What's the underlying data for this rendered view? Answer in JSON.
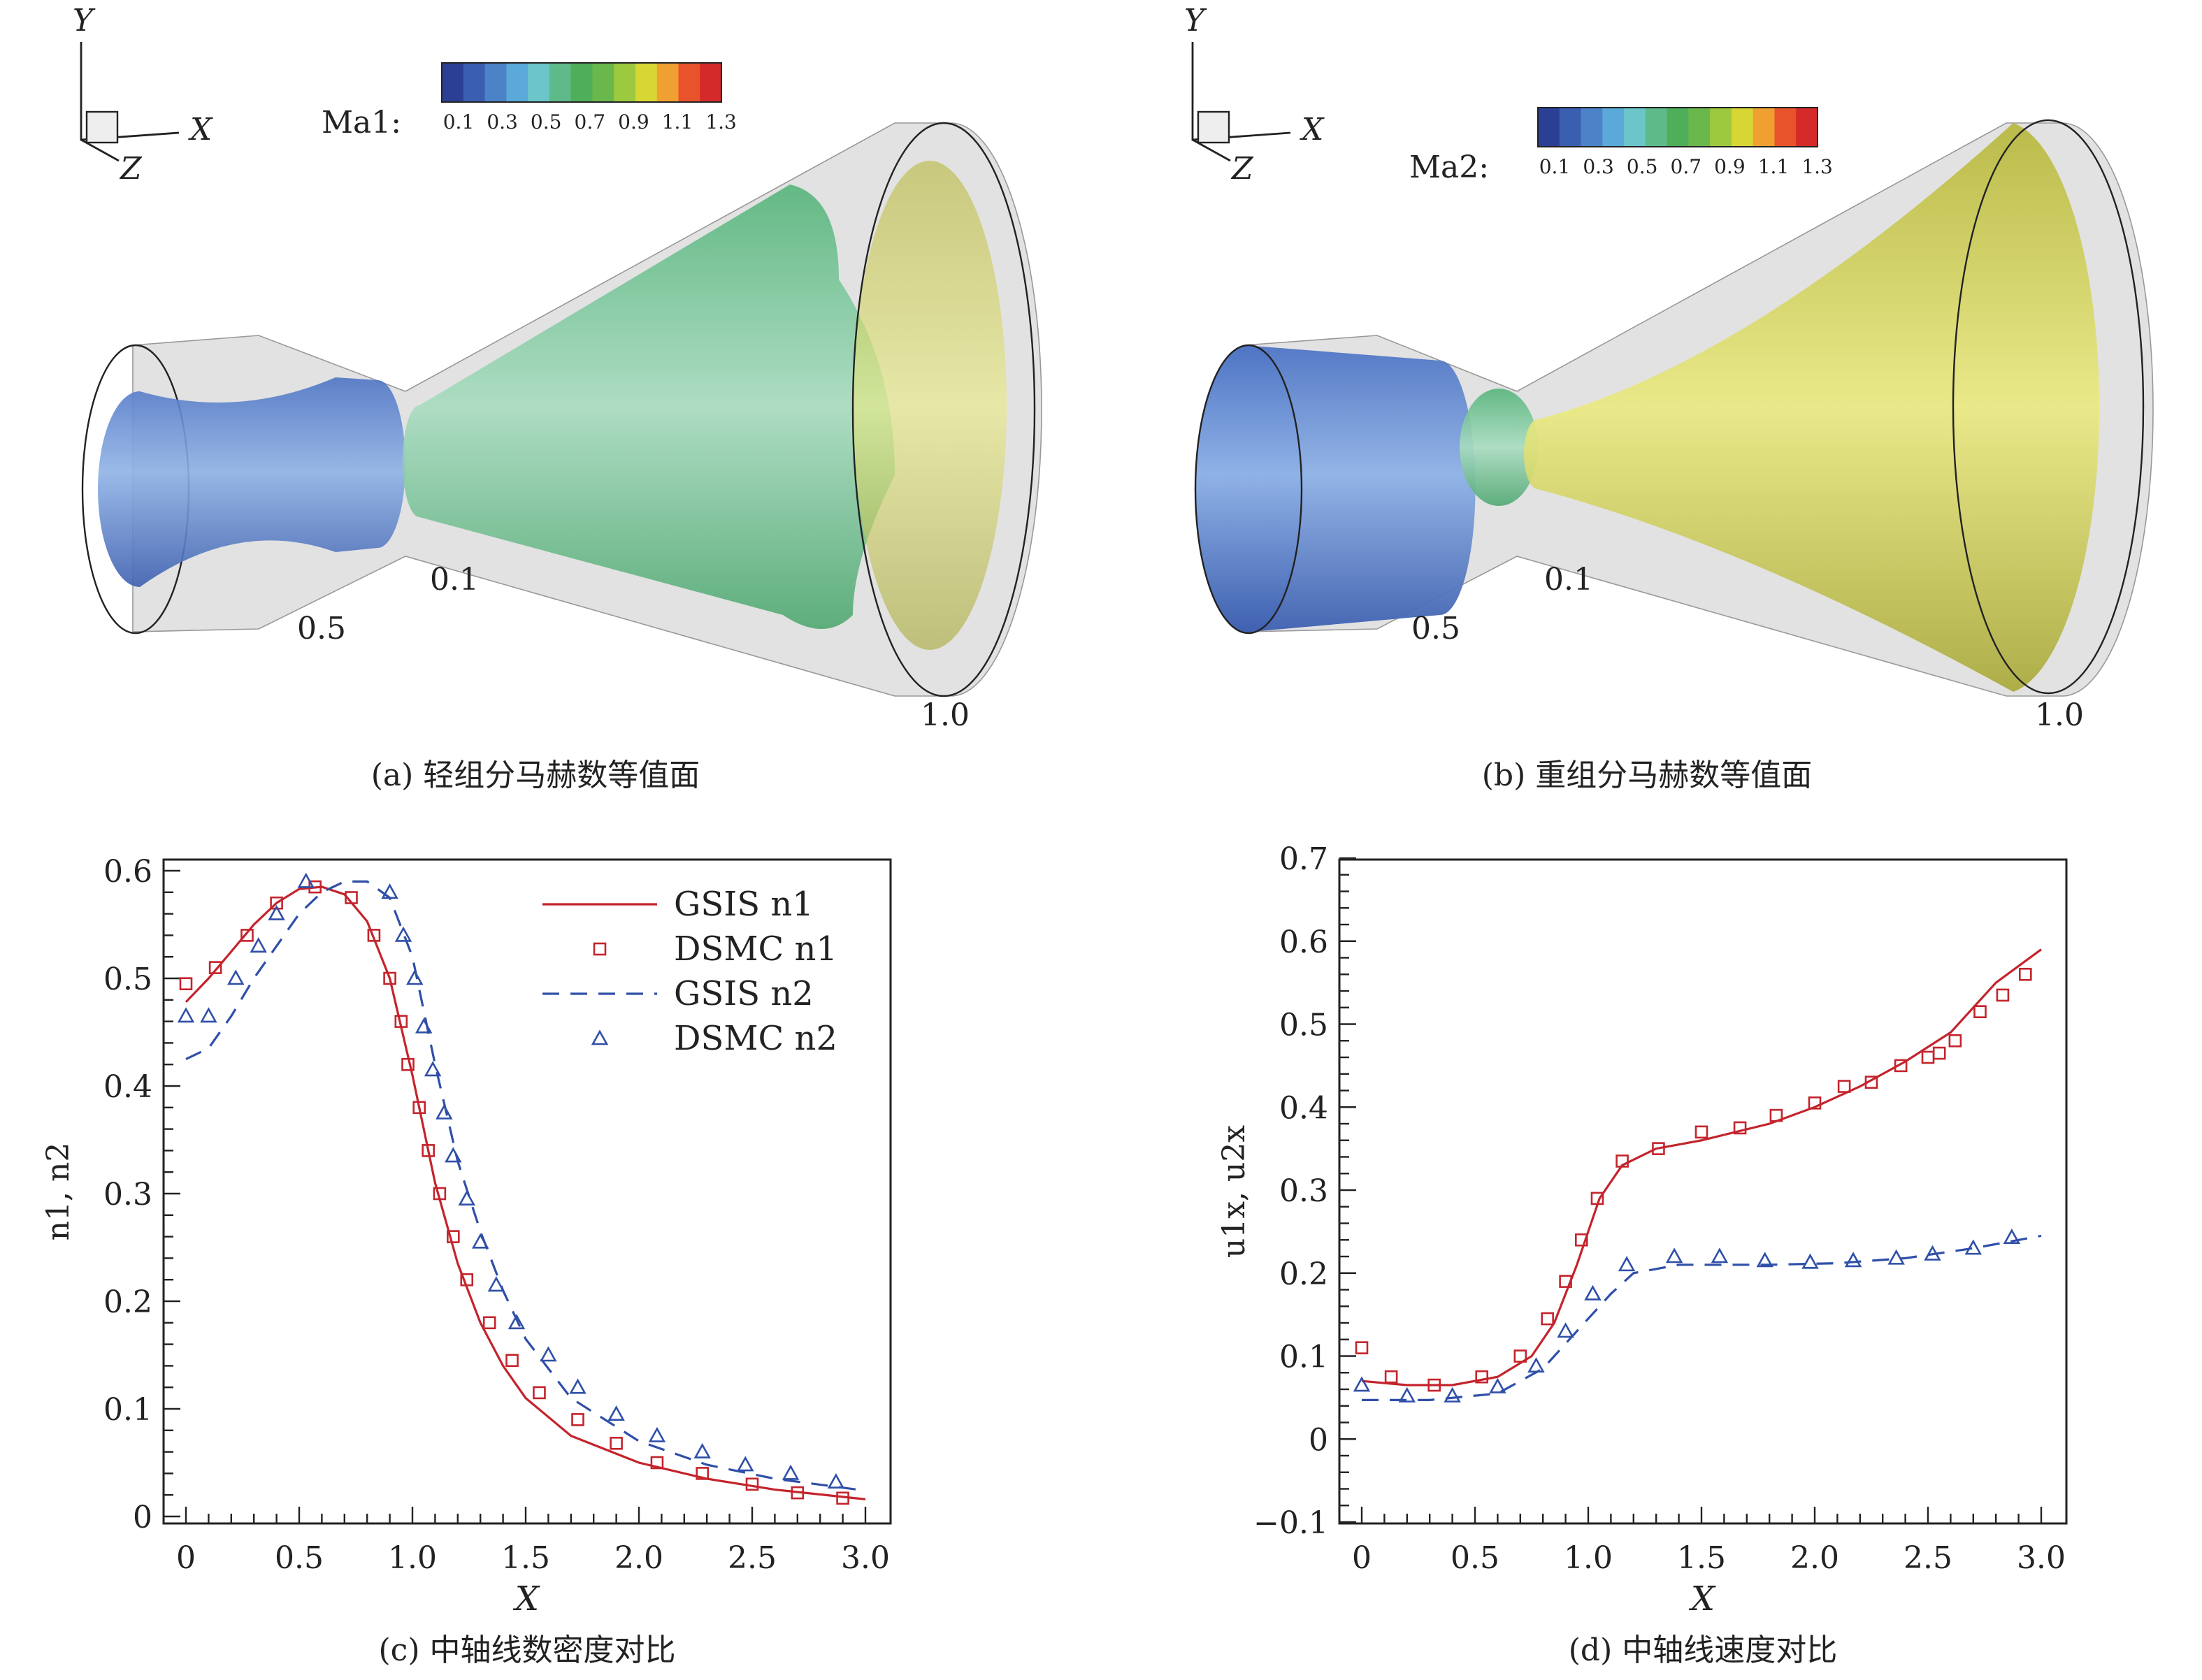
{
  "panels": [
    {
      "axis_labels": {
        "y": "Y",
        "x": "X",
        "z": "Z"
      },
      "legend_label": "Ma1:",
      "contour_labels": [
        "0.1",
        "0.5",
        "1.0"
      ],
      "caption": "(a) 轻组分马赫数等值面"
    },
    {
      "axis_labels": {
        "y": "Y",
        "x": "X",
        "z": "Z"
      },
      "legend_label": "Ma2:",
      "contour_labels": [
        "0.1",
        "0.5",
        "1.0"
      ],
      "caption": "(b) 重组分马赫数等值面"
    }
  ],
  "colorbar": {
    "ticks": [
      "0.1",
      "0.3",
      "0.5",
      "0.7",
      "0.9",
      "1.1",
      "1.3"
    ],
    "colors": [
      "#2b3f94",
      "#3a5fb0",
      "#4b82c8",
      "#5aa9d8",
      "#6cc5c8",
      "#5fba8a",
      "#4fae5a",
      "#6ab84b",
      "#9cc93e",
      "#d8d634",
      "#f0a030",
      "#e8532c",
      "#d42a2a"
    ]
  },
  "colors": {
    "n1": "#c4242c",
    "n2": "#2f4fa8"
  },
  "chart_data": [
    {
      "type": "line",
      "caption": "(c) 中轴线数密度对比",
      "xlabel": "X",
      "ylabel": "n1, n2",
      "xlim": [
        0,
        3.0
      ],
      "ylim": [
        0,
        0.6
      ],
      "xticks": [
        "0",
        "0.5",
        "1.0",
        "1.5",
        "2.0",
        "2.5",
        "3.0"
      ],
      "yticks": [
        "0",
        "0.1",
        "0.2",
        "0.3",
        "0.4",
        "0.5",
        "0.6"
      ],
      "legend_position": "top-right",
      "series": [
        {
          "name": "GSIS n1",
          "style": "solid",
          "color": "#c4242c",
          "x": [
            0,
            0.1,
            0.2,
            0.3,
            0.4,
            0.5,
            0.6,
            0.7,
            0.8,
            0.9,
            1.0,
            1.1,
            1.2,
            1.3,
            1.4,
            1.5,
            1.7,
            2.0,
            2.3,
            2.6,
            3.0
          ],
          "y": [
            0.478,
            0.5,
            0.525,
            0.55,
            0.57,
            0.583,
            0.585,
            0.578,
            0.553,
            0.5,
            0.41,
            0.31,
            0.235,
            0.18,
            0.14,
            0.11,
            0.075,
            0.05,
            0.035,
            0.025,
            0.016
          ]
        },
        {
          "name": "DSMC n1",
          "style": "square",
          "color": "#c4242c",
          "x": [
            0,
            0.13,
            0.27,
            0.4,
            0.57,
            0.73,
            0.83,
            0.9,
            0.95,
            0.98,
            1.03,
            1.07,
            1.12,
            1.18,
            1.24,
            1.34,
            1.44,
            1.56,
            1.73,
            1.9,
            2.08,
            2.28,
            2.5,
            2.7,
            2.9
          ],
          "y": [
            0.495,
            0.51,
            0.54,
            0.57,
            0.585,
            0.575,
            0.54,
            0.5,
            0.46,
            0.42,
            0.38,
            0.34,
            0.3,
            0.26,
            0.22,
            0.18,
            0.145,
            0.115,
            0.09,
            0.068,
            0.05,
            0.04,
            0.03,
            0.022,
            0.017
          ]
        },
        {
          "name": "GSIS n2",
          "style": "dashed",
          "color": "#2f4fa8",
          "x": [
            0,
            0.1,
            0.2,
            0.3,
            0.4,
            0.5,
            0.6,
            0.7,
            0.8,
            0.9,
            1.0,
            1.1,
            1.2,
            1.3,
            1.4,
            1.5,
            1.7,
            2.0,
            2.3,
            2.6,
            3.0
          ],
          "y": [
            0.425,
            0.435,
            0.465,
            0.5,
            0.53,
            0.56,
            0.58,
            0.59,
            0.59,
            0.575,
            0.52,
            0.42,
            0.33,
            0.265,
            0.21,
            0.165,
            0.11,
            0.07,
            0.048,
            0.035,
            0.024
          ]
        },
        {
          "name": "DSMC n2",
          "style": "triangle",
          "color": "#2f4fa8",
          "x": [
            0,
            0.1,
            0.22,
            0.32,
            0.4,
            0.53,
            0.9,
            0.96,
            1.01,
            1.05,
            1.09,
            1.14,
            1.18,
            1.24,
            1.3,
            1.37,
            1.46,
            1.6,
            1.73,
            1.9,
            2.08,
            2.28,
            2.47,
            2.67,
            2.87
          ],
          "y": [
            0.465,
            0.465,
            0.5,
            0.53,
            0.56,
            0.59,
            0.58,
            0.54,
            0.5,
            0.455,
            0.415,
            0.375,
            0.335,
            0.295,
            0.255,
            0.215,
            0.18,
            0.15,
            0.12,
            0.095,
            0.075,
            0.06,
            0.048,
            0.04,
            0.032
          ]
        }
      ]
    },
    {
      "type": "line",
      "caption": "(d) 中轴线速度对比",
      "xlabel": "X",
      "ylabel": "u1x, u2x",
      "xlim": [
        0,
        3.0
      ],
      "ylim": [
        -0.1,
        0.7
      ],
      "xticks": [
        "0",
        "0.5",
        "1.0",
        "1.5",
        "2.0",
        "2.5",
        "3.0"
      ],
      "yticks": [
        "−0.1",
        "0",
        "0.1",
        "0.2",
        "0.3",
        "0.4",
        "0.5",
        "0.6",
        "0.7"
      ],
      "series": [
        {
          "style": "solid",
          "color": "#c4242c",
          "x": [
            0,
            0.2,
            0.4,
            0.6,
            0.75,
            0.85,
            0.95,
            1.05,
            1.15,
            1.3,
            1.5,
            1.8,
            2.0,
            2.2,
            2.4,
            2.6,
            2.8,
            3.0
          ],
          "y": [
            0.07,
            0.065,
            0.065,
            0.075,
            0.1,
            0.14,
            0.21,
            0.29,
            0.33,
            0.35,
            0.36,
            0.38,
            0.4,
            0.425,
            0.455,
            0.49,
            0.55,
            0.59
          ]
        },
        {
          "style": "square",
          "color": "#c4242c",
          "x": [
            0,
            0.13,
            0.32,
            0.53,
            0.7,
            0.82,
            0.9,
            0.97,
            1.04,
            1.15,
            1.31,
            1.5,
            1.67,
            1.83,
            2.0,
            2.13,
            2.25,
            2.38,
            2.5,
            2.55,
            2.62,
            2.73,
            2.83,
            2.93
          ],
          "y": [
            0.11,
            0.075,
            0.065,
            0.075,
            0.1,
            0.145,
            0.19,
            0.24,
            0.29,
            0.335,
            0.35,
            0.37,
            0.375,
            0.39,
            0.405,
            0.425,
            0.43,
            0.45,
            0.46,
            0.465,
            0.48,
            0.515,
            0.535,
            0.56
          ]
        },
        {
          "style": "dashed",
          "color": "#2f4fa8",
          "x": [
            0,
            0.3,
            0.6,
            0.8,
            0.95,
            1.1,
            1.2,
            1.4,
            1.8,
            2.1,
            2.4,
            2.7,
            3.0
          ],
          "y": [
            0.047,
            0.047,
            0.055,
            0.085,
            0.13,
            0.175,
            0.2,
            0.21,
            0.21,
            0.212,
            0.218,
            0.23,
            0.245
          ]
        },
        {
          "style": "triangle",
          "color": "#2f4fa8",
          "x": [
            0,
            0.2,
            0.4,
            0.6,
            0.77,
            0.9,
            1.02,
            1.17,
            1.38,
            1.58,
            1.78,
            1.98,
            2.17,
            2.36,
            2.52,
            2.7,
            2.87
          ],
          "y": [
            0.065,
            0.052,
            0.052,
            0.063,
            0.088,
            0.13,
            0.175,
            0.21,
            0.22,
            0.22,
            0.215,
            0.213,
            0.215,
            0.218,
            0.223,
            0.23,
            0.243
          ]
        }
      ]
    }
  ]
}
